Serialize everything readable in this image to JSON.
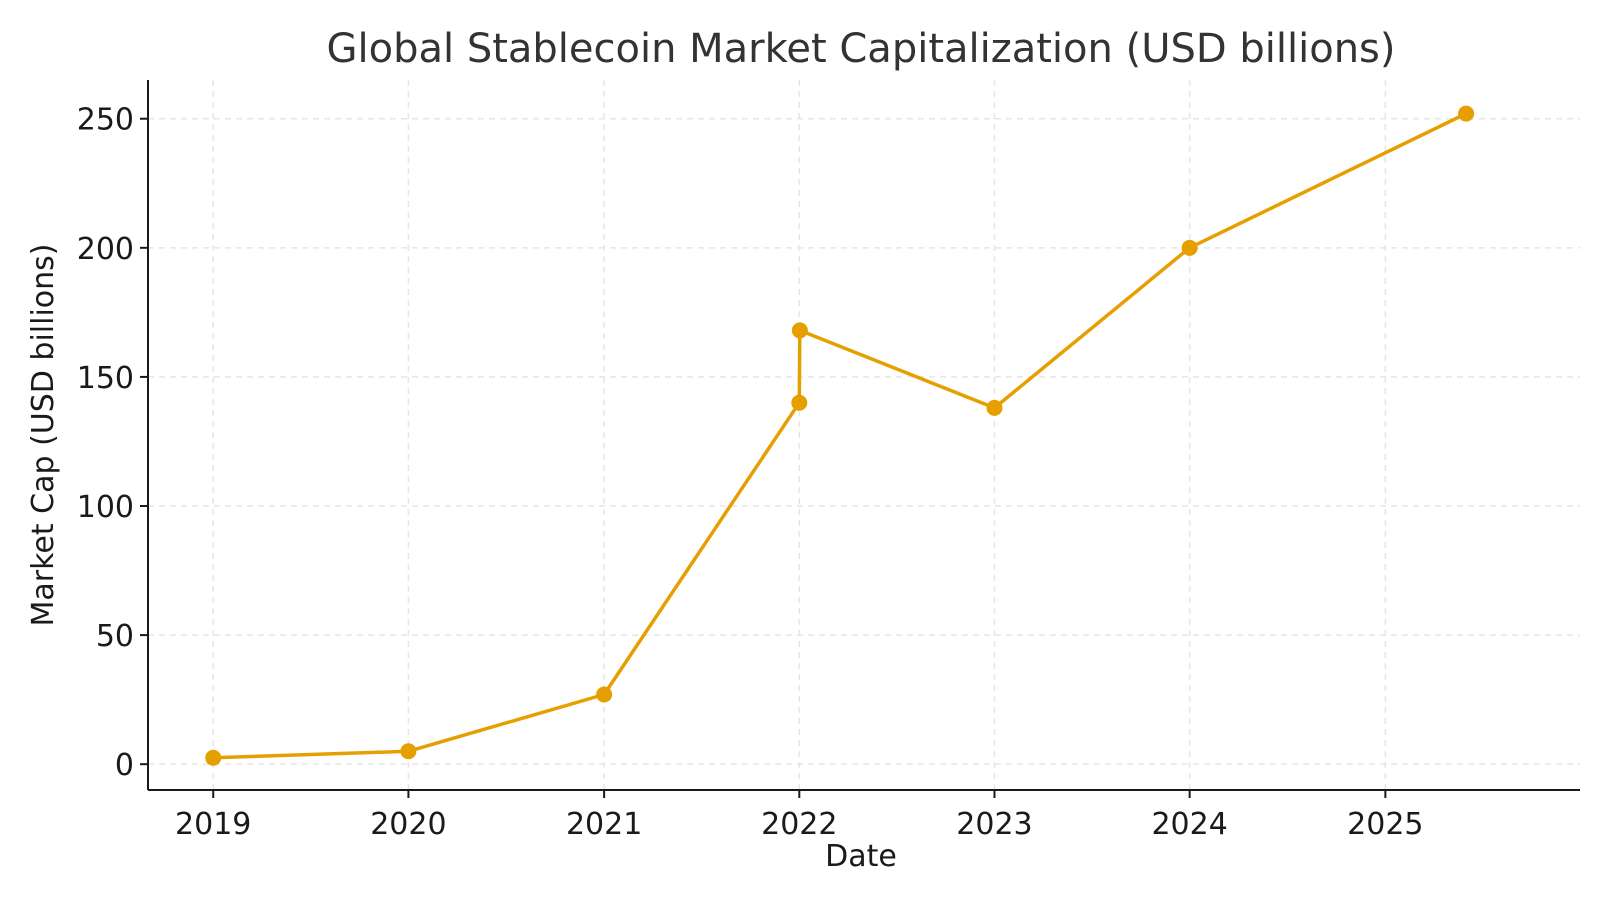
{
  "chart_data": {
    "type": "line",
    "title": "Global Stablecoin Market Capitalization (USD billions)",
    "xlabel": "Date",
    "ylabel": "Market Cap (USD billions)",
    "x_ticks": [
      "2019",
      "2020",
      "2021",
      "2022",
      "2023",
      "2024",
      "2025"
    ],
    "y_ticks": [
      0,
      50,
      100,
      150,
      200,
      250
    ],
    "xlim": [
      "2018-09-01",
      "2025-12-31"
    ],
    "ylim": [
      -10,
      265
    ],
    "grid": true,
    "legend": "none",
    "series": [
      {
        "color": "#E69F00",
        "points": [
          {
            "x": "2019-01-01",
            "y": 2.5
          },
          {
            "x": "2020-01-01",
            "y": 5
          },
          {
            "x": "2021-01-01",
            "y": 27
          },
          {
            "x": "2022-01-01",
            "y": 140
          },
          {
            "x": "2022-01-02",
            "y": 168
          },
          {
            "x": "2023-01-01",
            "y": 138
          },
          {
            "x": "2024-01-01",
            "y": 200
          },
          {
            "x": "2025-06-01",
            "y": 252
          }
        ]
      }
    ]
  }
}
